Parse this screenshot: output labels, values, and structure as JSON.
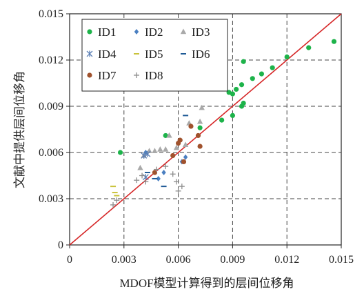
{
  "chart_data": {
    "type": "scatter",
    "xlabel": "MDOF模型计算得到的层间位移角",
    "ylabel": "文献中提供层间位移角",
    "xlim": [
      0,
      0.015
    ],
    "ylim": [
      0,
      0.015
    ],
    "x_ticks": [
      "0",
      "0.003",
      "0.006",
      "0.009",
      "0.012",
      "0.015"
    ],
    "y_ticks": [
      "0",
      "0.003",
      "0.006",
      "0.009",
      "0.012",
      "0.015"
    ],
    "grid": "dashed",
    "legend_position": "top-left",
    "reference_line": {
      "x": [
        0,
        0.015
      ],
      "y": [
        0,
        0.015
      ],
      "color": "#d62728"
    },
    "series": [
      {
        "name": "ID1",
        "marker": "circle",
        "color": "#1db34a",
        "points": [
          [
            0.0028,
            0.006
          ],
          [
            0.0053,
            0.0071
          ],
          [
            0.0072,
            0.0076
          ],
          [
            0.0084,
            0.0081
          ],
          [
            0.0088,
            0.0099
          ],
          [
            0.009,
            0.0098
          ],
          [
            0.0092,
            0.0101
          ],
          [
            0.009,
            0.0084
          ],
          [
            0.0095,
            0.009
          ],
          [
            0.0096,
            0.0092
          ],
          [
            0.0095,
            0.0104
          ],
          [
            0.0096,
            0.0119
          ],
          [
            0.0101,
            0.0108
          ],
          [
            0.0106,
            0.0111
          ],
          [
            0.0112,
            0.0115
          ],
          [
            0.012,
            0.0122
          ],
          [
            0.0132,
            0.0128
          ],
          [
            0.0146,
            0.0132
          ]
        ]
      },
      {
        "name": "ID2",
        "marker": "diamond",
        "color": "#4a7fc1",
        "points": [
          [
            0.0042,
            0.006
          ],
          [
            0.0049,
            0.0043
          ],
          [
            0.0052,
            0.0047
          ],
          [
            0.0062,
            0.0054
          ],
          [
            0.0064,
            0.0057
          ]
        ]
      },
      {
        "name": "ID3",
        "marker": "triangle",
        "color": "#a9a9a9",
        "points": [
          [
            0.0039,
            0.005
          ],
          [
            0.0041,
            0.0058
          ],
          [
            0.0044,
            0.0061
          ],
          [
            0.0047,
            0.0061
          ],
          [
            0.005,
            0.0062
          ],
          [
            0.0053,
            0.0062
          ],
          [
            0.0055,
            0.0071
          ],
          [
            0.0059,
            0.0063
          ],
          [
            0.0064,
            0.0065
          ],
          [
            0.0066,
            0.0079
          ],
          [
            0.0072,
            0.008
          ],
          [
            0.0073,
            0.0089
          ]
        ]
      },
      {
        "name": "ID4",
        "marker": "asterisk",
        "color": "#5b7fb5",
        "points": [
          [
            0.0041,
            0.0058
          ],
          [
            0.0043,
            0.0059
          ],
          [
            0.0042,
            0.0044
          ]
        ]
      },
      {
        "name": "ID5",
        "marker": "dash",
        "color": "#c9c23a",
        "points": [
          [
            0.0024,
            0.0038
          ],
          [
            0.0025,
            0.0034
          ],
          [
            0.0026,
            0.0032
          ]
        ]
      },
      {
        "name": "ID6",
        "marker": "dash",
        "color": "#1f5a96",
        "points": [
          [
            0.0043,
            0.0047
          ],
          [
            0.0047,
            0.0043
          ],
          [
            0.0052,
            0.0038
          ],
          [
            0.0064,
            0.0084
          ]
        ]
      },
      {
        "name": "ID7",
        "marker": "circle",
        "color": "#a0522d",
        "points": [
          [
            0.0047,
            0.0047
          ],
          [
            0.0057,
            0.0058
          ],
          [
            0.006,
            0.0066
          ],
          [
            0.0061,
            0.0068
          ],
          [
            0.0063,
            0.0054
          ],
          [
            0.0067,
            0.0077
          ],
          [
            0.0071,
            0.0071
          ],
          [
            0.0072,
            0.0064
          ]
        ]
      },
      {
        "name": "ID8",
        "marker": "plus",
        "color": "#8c8c8c",
        "points": [
          [
            0.0024,
            0.0026
          ],
          [
            0.0026,
            0.0029
          ],
          [
            0.0037,
            0.0042
          ],
          [
            0.004,
            0.0045
          ],
          [
            0.0042,
            0.0041
          ],
          [
            0.0048,
            0.0049
          ],
          [
            0.0053,
            0.0051
          ],
          [
            0.0057,
            0.0046
          ],
          [
            0.0059,
            0.0041
          ],
          [
            0.006,
            0.0035
          ],
          [
            0.0062,
            0.0038
          ]
        ]
      }
    ]
  }
}
